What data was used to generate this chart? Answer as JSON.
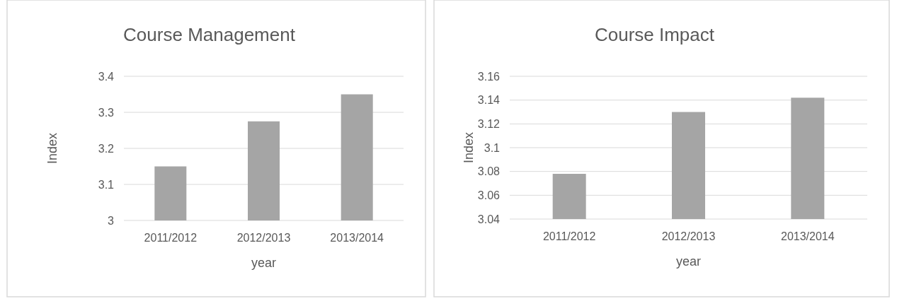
{
  "chart_data": [
    {
      "type": "bar",
      "title": "Course Management",
      "xlabel": "year",
      "ylabel": "Index",
      "categories": [
        "2011/2012",
        "2012/2013",
        "2013/2014"
      ],
      "values": [
        3.15,
        3.275,
        3.35
      ],
      "color": "#a5a5a5",
      "ylim": [
        3,
        3.4
      ],
      "yticks": [
        3,
        3.1,
        3.2,
        3.3,
        3.4
      ],
      "grid": "y"
    },
    {
      "type": "bar",
      "title": "Course Impact",
      "xlabel": "year",
      "ylabel": "Index",
      "categories": [
        "2011/2012",
        "2012/2013",
        "2013/2014"
      ],
      "values": [
        3.078,
        3.13,
        3.142
      ],
      "color": "#a5a5a5",
      "ylim": [
        3.04,
        3.16
      ],
      "yticks": [
        3.04,
        3.06,
        3.08,
        3.1,
        3.12,
        3.14,
        3.16
      ],
      "grid": "y"
    }
  ]
}
